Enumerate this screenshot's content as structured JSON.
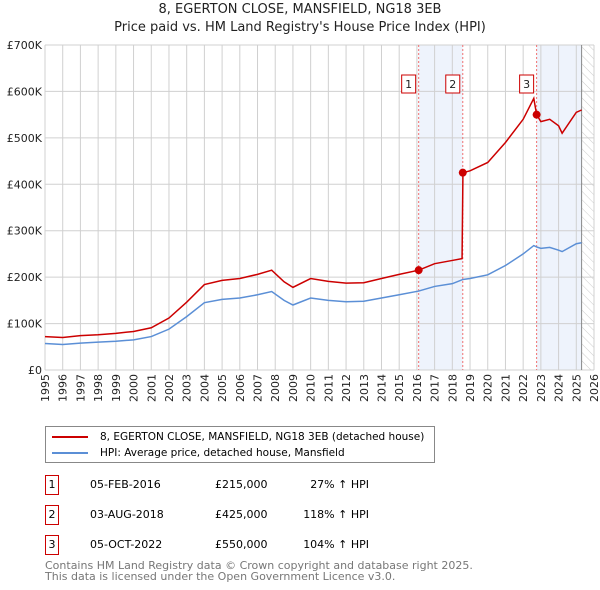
{
  "colors": {
    "property": "#cc0000",
    "hpi": "#5b8fd6",
    "shade": "#eef3fc"
  },
  "chart_data": {
    "type": "line",
    "title": "8, EGERTON CLOSE, MANSFIELD, NG18 3EB",
    "subtitle": "Price paid vs. HM Land Registry's House Price Index (HPI)",
    "xlim": [
      1995,
      2026
    ],
    "ylim": [
      0,
      700000
    ],
    "yticks": [
      0,
      100000,
      200000,
      300000,
      400000,
      500000,
      600000,
      700000
    ],
    "ytick_labels": [
      "£0",
      "£100K",
      "£200K",
      "£300K",
      "£400K",
      "£500K",
      "£600K",
      "£700K"
    ],
    "xticks": [
      1995,
      1996,
      1997,
      1998,
      1999,
      2000,
      2001,
      2002,
      2003,
      2004,
      2005,
      2006,
      2007,
      2008,
      2009,
      2010,
      2011,
      2012,
      2013,
      2014,
      2015,
      2016,
      2017,
      2018,
      2019,
      2020,
      2021,
      2022,
      2023,
      2024,
      2025,
      2026
    ],
    "grid": true,
    "data_end": 2025.3,
    "series": [
      {
        "name": "8, EGERTON CLOSE, MANSFIELD, NG18 3EB (detached house)",
        "x": [
          1995,
          1996,
          1997,
          1998,
          1999,
          2000,
          2001,
          2002,
          2003,
          2004,
          2005,
          2006,
          2007,
          2007.8,
          2008.5,
          2009,
          2010,
          2011,
          2012,
          2013,
          2014,
          2015,
          2016.1,
          2017,
          2018,
          2018.55,
          2018.6,
          2019,
          2020,
          2021,
          2022,
          2022.6,
          2022.76,
          2023,
          2023.5,
          2024,
          2024.2,
          2025,
          2025.3
        ],
        "y": [
          72000,
          70000,
          74000,
          76000,
          79000,
          83000,
          91000,
          112000,
          146000,
          184000,
          193000,
          197000,
          206000,
          215000,
          190000,
          178000,
          197000,
          191000,
          187000,
          188000,
          197000,
          206000,
          215000,
          229000,
          236000,
          240000,
          425000,
          429000,
          447000,
          490000,
          540000,
          585000,
          550000,
          535000,
          540000,
          526000,
          510000,
          555000,
          560000
        ]
      },
      {
        "name": "HPI: Average price, detached house, Mansfield",
        "x": [
          1995,
          1996,
          1997,
          1998,
          1999,
          2000,
          2001,
          2002,
          2003,
          2004,
          2005,
          2006,
          2007,
          2007.8,
          2008.5,
          2009,
          2010,
          2011,
          2012,
          2013,
          2014,
          2015,
          2016.1,
          2017,
          2018,
          2018.6,
          2019,
          2020,
          2021,
          2022,
          2022.6,
          2022.76,
          2023,
          2023.5,
          2024,
          2024.2,
          2025,
          2025.3
        ],
        "y": [
          57000,
          55000,
          58000,
          60000,
          62000,
          65000,
          72000,
          88000,
          115000,
          145000,
          152000,
          155000,
          162000,
          169000,
          150000,
          140000,
          155000,
          150000,
          147000,
          148000,
          155000,
          162000,
          170000,
          180000,
          186000,
          195000,
          197000,
          205000,
          225000,
          250000,
          268000,
          265000,
          262000,
          264000,
          258000,
          255000,
          272000,
          274000
        ]
      }
    ],
    "sales": [
      {
        "label": "1",
        "date": "05-FEB-2016",
        "x": 2016.1,
        "price": "£215,000",
        "value": 215000,
        "hpi": "27% ↑ HPI"
      },
      {
        "label": "2",
        "date": "03-AUG-2018",
        "x": 2018.59,
        "price": "£425,000",
        "value": 425000,
        "hpi": "118% ↑ HPI"
      },
      {
        "label": "3",
        "date": "05-OCT-2022",
        "x": 2022.76,
        "price": "£550,000",
        "value": 550000,
        "hpi": "104% ↑ HPI"
      }
    ]
  },
  "footer": {
    "line1": "Contains HM Land Registry data © Crown copyright and database right 2025.",
    "line2": "This data is licensed under the Open Government Licence v3.0."
  }
}
